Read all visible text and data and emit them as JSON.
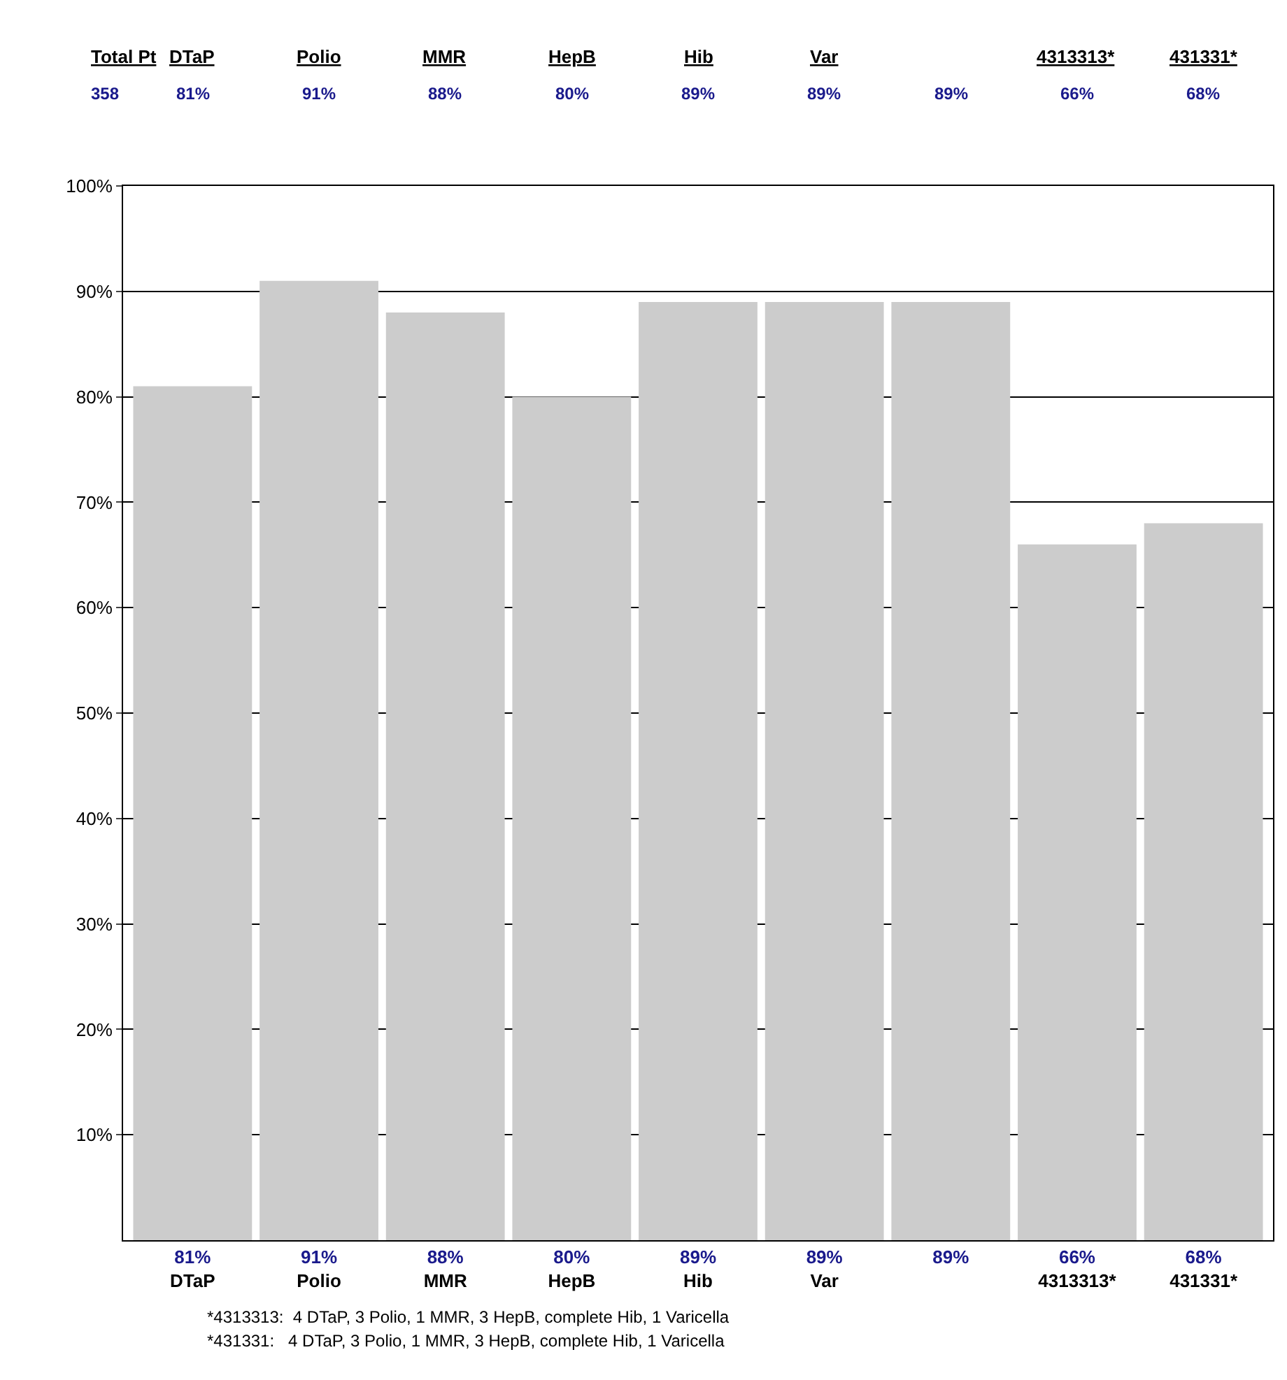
{
  "chart_data": {
    "type": "bar",
    "categories": [
      "DTaP",
      "Polio",
      "MMR",
      "HepB",
      "Hib",
      "Var",
      null,
      "4313313*",
      "431331*"
    ],
    "values": [
      81,
      91,
      88,
      80,
      89,
      89,
      89,
      66,
      68
    ],
    "value_labels": [
      "81%",
      "91%",
      "88%",
      "80%",
      "89%",
      "89%",
      "89%",
      "66%",
      "68%"
    ],
    "color": "#cccccc",
    "ylim": [
      0,
      100
    ],
    "yticks": [
      {
        "value": 10,
        "label": "10%"
      },
      {
        "value": 20,
        "label": "20%"
      },
      {
        "value": 30,
        "label": "30%"
      },
      {
        "value": 40,
        "label": "40%"
      },
      {
        "value": 50,
        "label": "50%"
      },
      {
        "value": 60,
        "label": "60%"
      },
      {
        "value": 70,
        "label": "70%"
      },
      {
        "value": 80,
        "label": "80%"
      },
      {
        "value": 90,
        "label": "90%"
      },
      {
        "value": 100,
        "label": "100%"
      }
    ],
    "grid": "y",
    "annotations": [
      "Total Pt",
      "358",
      "*4313313:  4 DTaP, 3 Polio, 1 MMR, 3 HepB, complete Hib, 1 Varicella",
      "*431331:   4 DTaP, 3 Polio, 1 MMR, 3 HepB, complete Hib, 1 Varicella"
    ]
  }
}
